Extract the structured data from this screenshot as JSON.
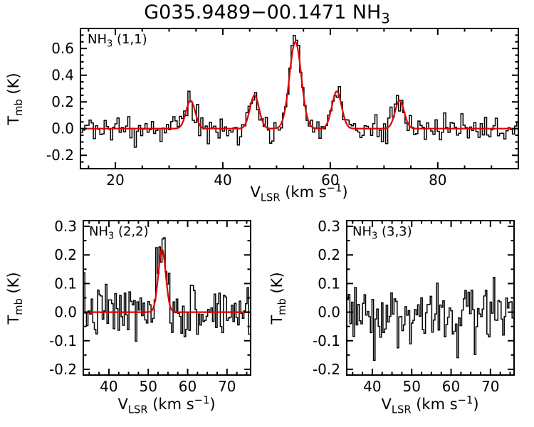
{
  "page": {
    "title_main": "G035.9489−00.1471 NH",
    "title_sub": "3"
  },
  "chart_data": [
    {
      "type": "line",
      "panel_id": "nh3-11",
      "label": {
        "prefix": "NH",
        "sub": "3",
        "suffix": " (1,1)"
      },
      "xlabel": {
        "main": "V",
        "sub": "LSR",
        "mid": " (km s",
        "sup": "−1",
        "end": ")"
      },
      "ylabel": {
        "main": "T",
        "sub": "mb",
        "end": " (K)"
      },
      "xlim": [
        13.5,
        95
      ],
      "ylim": [
        -0.3,
        0.75
      ],
      "xticks": [
        20,
        40,
        60,
        80
      ],
      "xtick_labels": [
        "20",
        "40",
        "60",
        "80"
      ],
      "xminor": 5,
      "yticks": [
        -0.2,
        0,
        0.2,
        0.4,
        0.6
      ],
      "ytick_labels": [
        "-0.2",
        "0.0",
        "0.2",
        "0.4",
        "0.6"
      ],
      "yminor": 0.05,
      "channel_width": 0.4,
      "noise_sigma": 0.05,
      "noise_seed": 20,
      "line_color": "#000000",
      "fit_color": "#e00000",
      "fit_components": [
        {
          "center": 34.0,
          "amplitude": 0.21,
          "sigma": 0.85
        },
        {
          "center": 45.9,
          "amplitude": 0.25,
          "sigma": 0.85
        },
        {
          "center": 53.5,
          "amplitude": 0.65,
          "sigma": 1.1
        },
        {
          "center": 61.2,
          "amplitude": 0.28,
          "sigma": 0.9
        },
        {
          "center": 72.9,
          "amplitude": 0.21,
          "sigma": 0.85
        }
      ]
    },
    {
      "type": "line",
      "panel_id": "nh3-22",
      "label": {
        "prefix": "NH",
        "sub": "3",
        "suffix": " (2,2)"
      },
      "xlabel": {
        "main": "V",
        "sub": "LSR",
        "mid": " (km s",
        "sup": "−1",
        "end": ")"
      },
      "ylabel": {
        "main": "T",
        "sub": "mb",
        "end": " (K)"
      },
      "xlim": [
        33.5,
        76
      ],
      "ylim": [
        -0.22,
        0.32
      ],
      "xticks": [
        40,
        50,
        60,
        70
      ],
      "xtick_labels": [
        "40",
        "50",
        "60",
        "70"
      ],
      "xminor": 2.5,
      "yticks": [
        -0.2,
        -0.1,
        0,
        0.1,
        0.2,
        0.3
      ],
      "ytick_labels": [
        "-0.2",
        "-0.1",
        "0.0",
        "0.1",
        "0.2",
        "0.3"
      ],
      "yminor": 0.05,
      "channel_width": 0.4,
      "noise_sigma": 0.05,
      "noise_seed": 7,
      "line_color": "#000000",
      "fit_color": "#e00000",
      "fit_components": [
        {
          "center": 53.5,
          "amplitude": 0.22,
          "sigma": 0.95
        }
      ]
    },
    {
      "type": "line",
      "panel_id": "nh3-33",
      "label": {
        "prefix": "NH",
        "sub": "3",
        "suffix": " (3,3)"
      },
      "xlabel": {
        "main": "V",
        "sub": "LSR",
        "mid": " (km s",
        "sup": "−1",
        "end": ")"
      },
      "ylabel": {
        "main": "T",
        "sub": "mb",
        "end": " (K)"
      },
      "xlim": [
        33.5,
        76
      ],
      "ylim": [
        -0.22,
        0.32
      ],
      "xticks": [
        40,
        50,
        60,
        70
      ],
      "xtick_labels": [
        "40",
        "50",
        "60",
        "70"
      ],
      "xminor": 2.5,
      "yticks": [
        -0.2,
        -0.1,
        0,
        0.1,
        0.2,
        0.3
      ],
      "ytick_labels": [
        "-0.2",
        "-0.1",
        "0.0",
        "0.1",
        "0.2",
        "0.3"
      ],
      "yminor": 0.05,
      "channel_width": 0.4,
      "noise_sigma": 0.055,
      "noise_seed": 3,
      "line_color": "#000000",
      "fit_color": "#e00000",
      "fit_components": []
    }
  ]
}
